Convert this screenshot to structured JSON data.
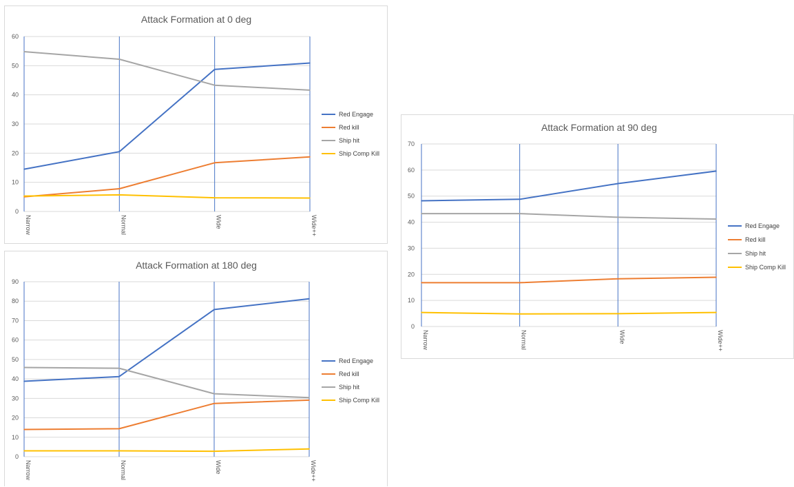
{
  "colors": {
    "red_engage": "#4472C4",
    "red_kill": "#ED7D31",
    "ship_hit": "#A5A5A5",
    "ship_comp_kill": "#FFC000",
    "grid": "#d9d9d9",
    "vline": "#4472C4"
  },
  "chart_data": [
    {
      "type": "line",
      "title": "Attack Formation at 0 deg",
      "categories": [
        "Narrow",
        "Normal",
        "Wide",
        "Wide++"
      ],
      "ylim": [
        0,
        60
      ],
      "yticks": [
        0,
        10,
        20,
        30,
        40,
        50,
        60
      ],
      "grid": true,
      "legend": "right",
      "series": [
        {
          "name": "Red Engage",
          "values": [
            14.5,
            20.5,
            48.7,
            50.9
          ]
        },
        {
          "name": "Red kill",
          "values": [
            5.0,
            7.8,
            16.7,
            18.7
          ]
        },
        {
          "name": "Ship hit",
          "values": [
            54.8,
            52.2,
            43.3,
            41.6
          ]
        },
        {
          "name": "Ship Comp Kill",
          "values": [
            5.3,
            5.7,
            4.7,
            4.6
          ]
        }
      ]
    },
    {
      "type": "line",
      "title": "Attack Formation at 90 deg",
      "categories": [
        "Narrow",
        "Normal",
        "Wide",
        "Wide++"
      ],
      "ylim": [
        0,
        70
      ],
      "yticks": [
        0,
        10,
        20,
        30,
        40,
        50,
        60,
        70
      ],
      "grid": true,
      "legend": "right",
      "series": [
        {
          "name": "Red Engage",
          "values": [
            48.2,
            48.8,
            54.8,
            59.6
          ]
        },
        {
          "name": "Red kill",
          "values": [
            16.8,
            16.8,
            18.3,
            18.9
          ]
        },
        {
          "name": "Ship hit",
          "values": [
            43.3,
            43.3,
            41.9,
            41.2
          ]
        },
        {
          "name": "Ship Comp Kill",
          "values": [
            5.4,
            4.8,
            4.9,
            5.4
          ]
        }
      ]
    },
    {
      "type": "line",
      "title": "Attack Formation at 180 deg",
      "categories": [
        "Narrow",
        "Normal",
        "Wide",
        "Wide++"
      ],
      "ylim": [
        0,
        90
      ],
      "yticks": [
        0,
        10,
        20,
        30,
        40,
        50,
        60,
        70,
        80,
        90
      ],
      "grid": true,
      "legend": "right",
      "series": [
        {
          "name": "Red Engage",
          "values": [
            38.8,
            41.2,
            75.7,
            81.2
          ]
        },
        {
          "name": "Red kill",
          "values": [
            14.0,
            14.4,
            27.4,
            29.1
          ]
        },
        {
          "name": "Ship hit",
          "values": [
            45.9,
            45.5,
            32.4,
            30.4
          ]
        },
        {
          "name": "Ship Comp Kill",
          "values": [
            3.0,
            3.0,
            2.8,
            4.0
          ]
        }
      ]
    }
  ]
}
